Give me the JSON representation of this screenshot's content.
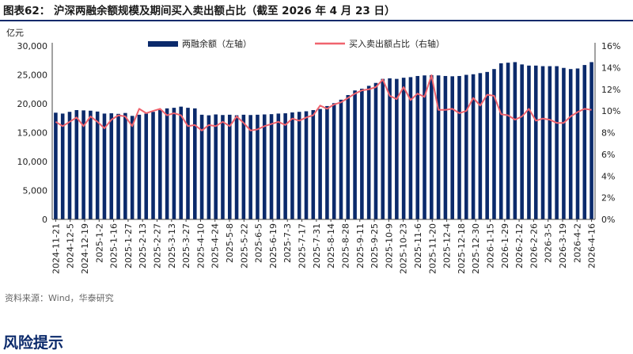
{
  "figure": {
    "title": "图表62：  沪深两融余额规模及期间买入卖出额占比（截至 2026 年 4 月 23 日）",
    "source": "资料来源：Wind，华泰研究",
    "next_section": "风险提示"
  },
  "colors": {
    "bar": "#0b2a6b",
    "line": "#f0646e",
    "title_rule": "#0b2a6b"
  },
  "chart_data": {
    "type": "bar",
    "left_axis": {
      "unit": "亿元",
      "min": 0,
      "max": 30000,
      "step": 5000,
      "ticks": [
        "0",
        "5,000",
        "10,000",
        "15,000",
        "20,000",
        "25,000",
        "30,000"
      ]
    },
    "right_axis": {
      "min": 0,
      "max": 16,
      "step": 2,
      "ticks": [
        "0%",
        "2%",
        "4%",
        "6%",
        "8%",
        "10%",
        "12%",
        "14%",
        "16%"
      ]
    },
    "x_tick_labels": [
      "2024-11-21",
      "2024-12-5",
      "2024-12-19",
      "2025-1-2",
      "2025-1-16",
      "2025-1-27",
      "2025-2-13",
      "2025-2-27",
      "2025-3-13",
      "2025-3-27",
      "2025-4-10",
      "2025-4-24",
      "2025-5-8",
      "2025-5-22",
      "2025-6-5",
      "2025-6-19",
      "2025-7-3",
      "2025-7-17",
      "2025-7-31",
      "2025-8-14",
      "2025-8-28",
      "2025-9-11",
      "2025-9-25",
      "2025-10-9",
      "2025-10-23",
      "2025-11-6",
      "2025-11-20",
      "2025-12-4",
      "2025-12-18",
      "2025-12-30",
      "2026-1-15",
      "2026-1-29",
      "2026-2-12",
      "2026-2-26",
      "2026-3-5",
      "2026-3-19",
      "2026-4-2",
      "2026-4-16"
    ],
    "legend_position": "top",
    "series": [
      {
        "name": "两融余额（左轴）",
        "type": "bar",
        "axis": "left",
        "values": [
          18450,
          18300,
          18600,
          18900,
          18850,
          18800,
          18650,
          18300,
          18350,
          18250,
          18400,
          17900,
          18100,
          18300,
          18600,
          18900,
          19200,
          19300,
          19500,
          19300,
          19200,
          18100,
          18000,
          18150,
          18050,
          18100,
          18000,
          18100,
          18050,
          18100,
          18150,
          18200,
          18300,
          18350,
          18500,
          18600,
          18700,
          18900,
          19100,
          19600,
          20100,
          20700,
          21500,
          22300,
          22600,
          23100,
          23600,
          24300,
          24400,
          24300,
          24500,
          24600,
          24800,
          24900,
          24950,
          24900,
          24800,
          24750,
          24800,
          25000,
          25100,
          25300,
          25500,
          26000,
          27000,
          27100,
          27200,
          26800,
          26600,
          26600,
          26500,
          26500,
          26500,
          26200,
          26000,
          26100,
          26700,
          27200
        ]
      },
      {
        "name": "买入卖出额占比（右轴）",
        "type": "line",
        "axis": "right",
        "values": [
          9.0,
          8.6,
          9.0,
          9.4,
          8.6,
          9.5,
          9.0,
          8.4,
          9.2,
          9.6,
          9.5,
          8.6,
          10.2,
          9.8,
          10.0,
          10.2,
          9.6,
          9.8,
          9.6,
          8.6,
          8.7,
          8.2,
          8.7,
          8.6,
          9.0,
          8.6,
          9.5,
          8.9,
          8.2,
          8.3,
          8.6,
          8.8,
          9.0,
          8.7,
          9.3,
          9.1,
          9.4,
          9.6,
          10.5,
          10.2,
          10.6,
          10.8,
          11.2,
          11.6,
          11.9,
          12.0,
          12.2,
          12.9,
          11.4,
          11.1,
          12.2,
          11.0,
          11.6,
          11.3,
          13.3,
          10.1,
          10.1,
          10.2,
          9.8,
          10.0,
          11.2,
          10.5,
          11.5,
          11.4,
          9.7,
          9.6,
          9.2,
          9.5,
          10.2,
          9.1,
          9.3,
          9.2,
          8.9,
          8.9,
          9.5,
          9.9,
          10.2,
          10.1
        ]
      }
    ]
  }
}
